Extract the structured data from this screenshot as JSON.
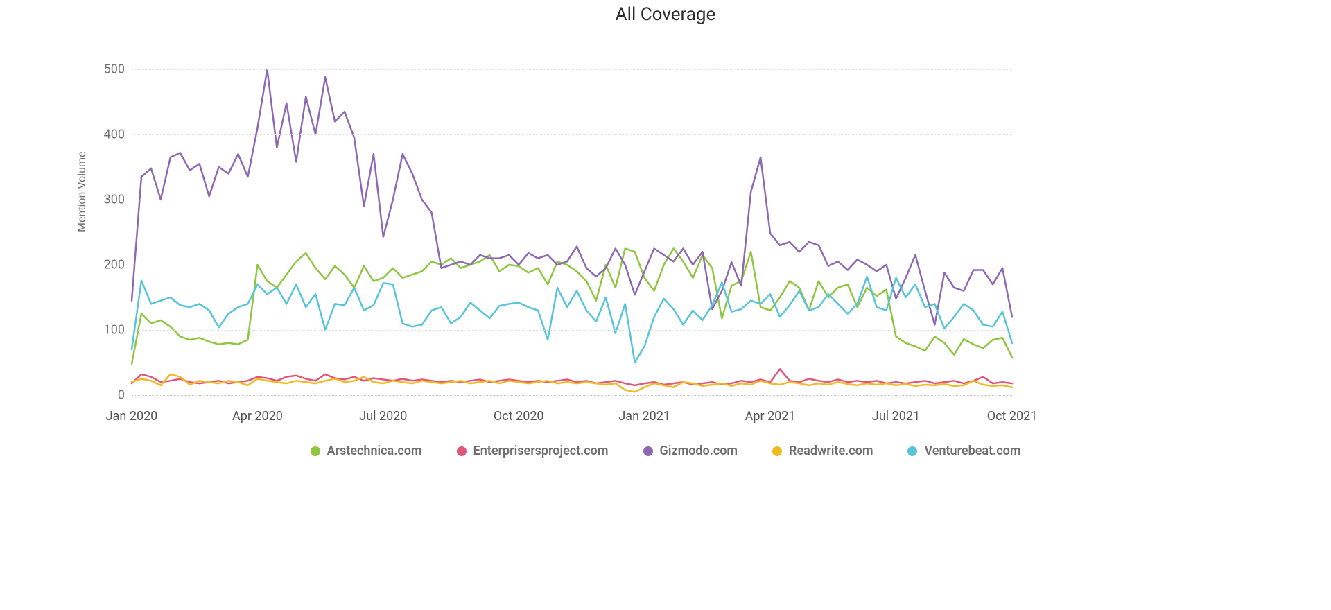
{
  "title": "All Coverage",
  "chart": {
    "type": "line",
    "y_label": "Mention Volume",
    "y_label_fontsize": 16,
    "ylim": [
      0,
      500
    ],
    "ytick_step": 100,
    "yticks": [
      0,
      100,
      200,
      300,
      400,
      500
    ],
    "x_points": 92,
    "xticks": [
      {
        "index": 0,
        "label": "Jan 2020"
      },
      {
        "index": 13,
        "label": "Apr 2020"
      },
      {
        "index": 26,
        "label": "Jul 2020"
      },
      {
        "index": 40,
        "label": "Oct 2020"
      },
      {
        "index": 53,
        "label": "Jan 2021"
      },
      {
        "index": 66,
        "label": "Apr 2021"
      },
      {
        "index": 79,
        "label": "Jul 2021"
      },
      {
        "index": 91,
        "label": "Oct 2021"
      }
    ],
    "background_color": "#ffffff",
    "grid_color": "#e0e0e0",
    "grid_style": "dotted",
    "line_width": 2.5,
    "series": [
      {
        "name": "Arstechnica.com",
        "color": "#8ec63f",
        "values": [
          48,
          125,
          110,
          115,
          105,
          90,
          85,
          88,
          82,
          78,
          80,
          78,
          85,
          200,
          175,
          165,
          185,
          205,
          218,
          195,
          178,
          198,
          185,
          165,
          198,
          175,
          180,
          195,
          180,
          185,
          190,
          205,
          200,
          210,
          195,
          200,
          205,
          215,
          190,
          200,
          198,
          188,
          195,
          170,
          205,
          200,
          190,
          175,
          145,
          200,
          165,
          225,
          220,
          180,
          160,
          200,
          225,
          205,
          180,
          215,
          195,
          118,
          168,
          175,
          220,
          135,
          130,
          150,
          175,
          165,
          130,
          175,
          150,
          165,
          170,
          135,
          165,
          152,
          162,
          90,
          80,
          75,
          68,
          90,
          80,
          62,
          86,
          78,
          72,
          85,
          88,
          58
        ]
      },
      {
        "name": "Enterprisersproject.com",
        "color": "#e0567c",
        "values": [
          18,
          32,
          28,
          20,
          22,
          25,
          20,
          18,
          20,
          22,
          18,
          20,
          22,
          28,
          26,
          22,
          28,
          30,
          25,
          22,
          32,
          26,
          24,
          28,
          22,
          26,
          24,
          22,
          25,
          22,
          24,
          22,
          20,
          22,
          20,
          22,
          24,
          20,
          22,
          24,
          22,
          20,
          22,
          20,
          22,
          24,
          20,
          22,
          18,
          20,
          22,
          18,
          15,
          18,
          20,
          16,
          18,
          20,
          16,
          18,
          20,
          16,
          18,
          22,
          20,
          24,
          20,
          40,
          22,
          20,
          25,
          22,
          20,
          24,
          20,
          22,
          20,
          22,
          18,
          20,
          18,
          20,
          22,
          18,
          20,
          22,
          18,
          22,
          28,
          18,
          20,
          18
        ]
      },
      {
        "name": "Gizmodo.com",
        "color": "#8e69b3",
        "values": [
          145,
          335,
          348,
          300,
          365,
          372,
          345,
          355,
          305,
          350,
          340,
          370,
          335,
          410,
          500,
          380,
          448,
          358,
          458,
          400,
          488,
          420,
          435,
          395,
          290,
          370,
          243,
          300,
          370,
          340,
          300,
          280,
          195,
          200,
          205,
          200,
          215,
          210,
          210,
          215,
          200,
          218,
          210,
          215,
          200,
          205,
          228,
          195,
          182,
          195,
          225,
          200,
          154,
          190,
          225,
          215,
          205,
          225,
          200,
          220,
          132,
          160,
          204,
          168,
          312,
          365,
          248,
          230,
          235,
          220,
          235,
          230,
          198,
          205,
          192,
          208,
          200,
          190,
          200,
          148,
          180,
          215,
          160,
          108,
          188,
          165,
          160,
          192,
          192,
          170,
          195,
          120
        ]
      },
      {
        "name": "Readwrite.com",
        "color": "#f3b922",
        "values": [
          20,
          25,
          22,
          15,
          32,
          28,
          16,
          22,
          20,
          18,
          22,
          20,
          15,
          25,
          22,
          20,
          18,
          22,
          20,
          18,
          22,
          25,
          20,
          22,
          28,
          20,
          18,
          22,
          20,
          18,
          22,
          20,
          18,
          20,
          22,
          18,
          20,
          22,
          18,
          22,
          20,
          18,
          20,
          22,
          18,
          20,
          18,
          20,
          18,
          16,
          18,
          8,
          5,
          12,
          18,
          15,
          12,
          20,
          18,
          14,
          16,
          18,
          14,
          18,
          16,
          22,
          18,
          16,
          20,
          18,
          15,
          18,
          16,
          20,
          17,
          15,
          18,
          16,
          18,
          15,
          17,
          14,
          16,
          15,
          17,
          14,
          15,
          22,
          16,
          14,
          15,
          12
        ]
      },
      {
        "name": "Venturebeat.com",
        "color": "#56c5da",
        "values": [
          70,
          176,
          140,
          145,
          150,
          138,
          135,
          140,
          130,
          104,
          125,
          135,
          140,
          170,
          155,
          165,
          140,
          170,
          135,
          155,
          100,
          140,
          138,
          165,
          130,
          138,
          172,
          170,
          110,
          105,
          108,
          130,
          135,
          110,
          120,
          142,
          130,
          118,
          137,
          140,
          142,
          135,
          130,
          85,
          165,
          135,
          160,
          130,
          113,
          150,
          95,
          140,
          50,
          75,
          120,
          148,
          132,
          108,
          130,
          115,
          138,
          173,
          128,
          132,
          145,
          140,
          155,
          120,
          138,
          160,
          130,
          135,
          155,
          140,
          125,
          140,
          182,
          135,
          130,
          180,
          150,
          170,
          135,
          140,
          102,
          120,
          140,
          130,
          108,
          105,
          128,
          80
        ]
      }
    ]
  },
  "legend_items": [
    {
      "label": "Arstechnica.com",
      "color": "#8ec63f"
    },
    {
      "label": "Enterprisersproject.com",
      "color": "#e0567c"
    },
    {
      "label": "Gizmodo.com",
      "color": "#8e69b3"
    },
    {
      "label": "Readwrite.com",
      "color": "#f3b922"
    },
    {
      "label": "Venturebeat.com",
      "color": "#56c5da"
    }
  ]
}
